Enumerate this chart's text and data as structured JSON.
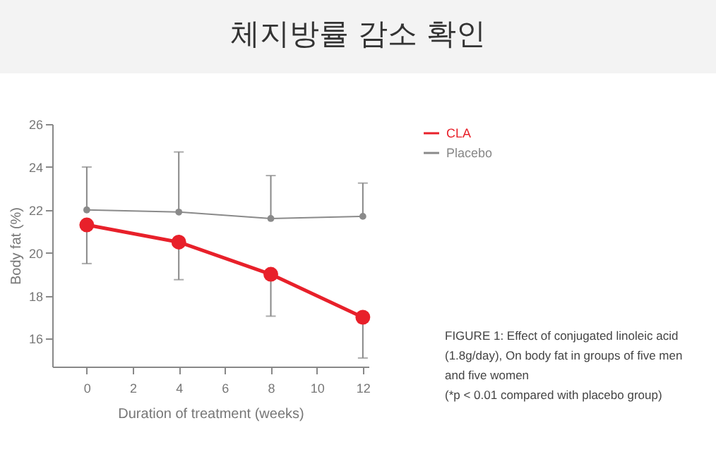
{
  "chart_data": {
    "type": "line",
    "title": "체지방률 감소 확인",
    "xlabel": "Duration of treatment (weeks)",
    "ylabel": "Body fat (%)",
    "x": [
      0,
      4,
      8,
      12
    ],
    "series": [
      {
        "name": "CLA",
        "color": "#e8202a",
        "values": [
          21.3,
          20.5,
          19.0,
          17.0
        ],
        "errors": [
          [
            19.5,
            21.3
          ],
          [
            18.75,
            20.5
          ],
          [
            17.05,
            19.0
          ],
          [
            15.1,
            17.0
          ]
        ]
      },
      {
        "name": "Placebo",
        "color": "#8a8a8a",
        "values": [
          22.0,
          21.9,
          21.6,
          21.7
        ],
        "errors": [
          [
            22.0,
            24.0
          ],
          [
            21.9,
            24.7
          ],
          [
            21.6,
            23.6
          ],
          [
            21.7,
            23.25
          ]
        ]
      }
    ],
    "xlim": [
      -1.5,
      12.25
    ],
    "xticks": [
      0,
      2,
      4,
      6,
      8,
      10,
      12
    ],
    "ylim": [
      14.7,
      26
    ],
    "yticks": [
      16,
      18,
      20,
      22,
      24,
      26
    ],
    "grid": false,
    "legend": "top right",
    "marker": "circle",
    "line_style": "solid",
    "annotations": [
      "FIGURE 1: Effect of conjugated linoleic acid (1.8g/day), On body fat in groups of five men and five women",
      "(*p < 0.01 compared with placebo group)"
    ]
  }
}
